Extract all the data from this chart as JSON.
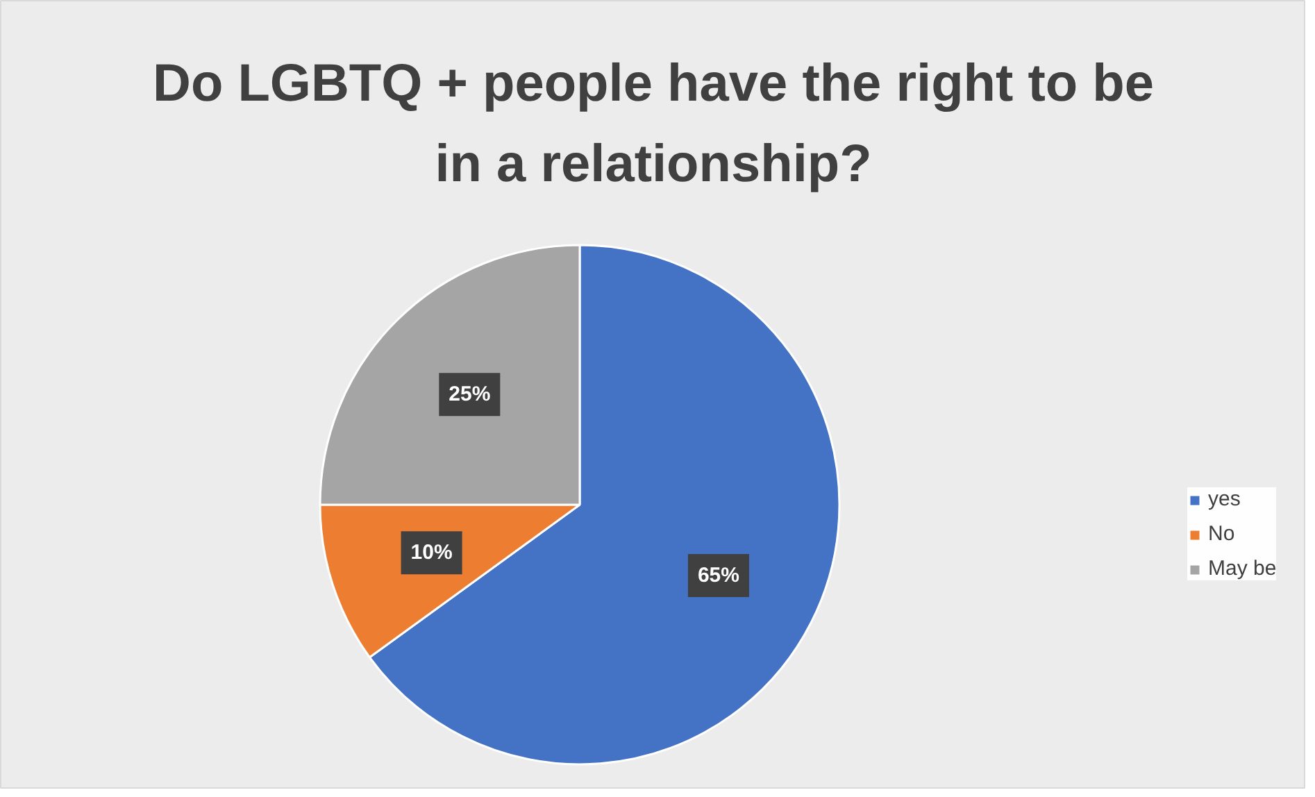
{
  "chart_data": {
    "type": "pie",
    "title": "Do LGBTQ + people have the right to be in a relationship?",
    "categories": [
      "yes",
      "No",
      "May be"
    ],
    "values": [
      65,
      10,
      25
    ],
    "colors": [
      "#4472c4",
      "#ed7d31",
      "#a5a5a5"
    ],
    "value_labels": [
      "65%",
      "10%",
      "25%"
    ],
    "legend": "right"
  }
}
